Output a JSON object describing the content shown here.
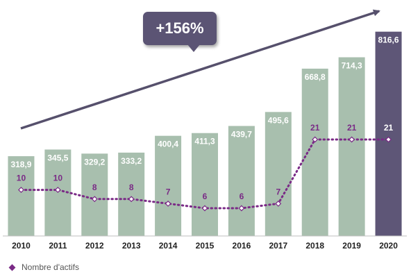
{
  "chart_data": {
    "type": "bar",
    "title": "",
    "xlabel": "",
    "ylabel": "",
    "categories": [
      "2010",
      "2011",
      "2012",
      "2013",
      "2014",
      "2015",
      "2016",
      "2017",
      "2018",
      "2019",
      "2020"
    ],
    "series": [
      {
        "type": "bar",
        "values": [
          318.9,
          345.5,
          329.2,
          333.2,
          400.4,
          411.3,
          439.7,
          495.6,
          668.8,
          714.3,
          816.6
        ],
        "labels": [
          "318,9",
          "345,5",
          "329,2",
          "333,2",
          "400,4",
          "411,3",
          "439,7",
          "495,6",
          "668,8",
          "714,3",
          "816,6"
        ],
        "color": "#a8bfae",
        "highlight_color": "#5e5677",
        "highlight_index": 10
      },
      {
        "type": "line",
        "name": "Nombre d'actifs",
        "values": [
          10,
          10,
          8,
          8,
          7,
          6,
          6,
          7,
          21,
          21,
          21
        ],
        "color": "#7a2a86",
        "style": "dotted",
        "marker": "diamond"
      }
    ],
    "grid": false,
    "legend_position": "bottom-left"
  },
  "annotation": {
    "text": "+156%",
    "color": "#5b5474",
    "arrow_color": "#56506c"
  },
  "legend": {
    "label": "Nombre d'actifs",
    "marker_color": "#7a2a86"
  }
}
